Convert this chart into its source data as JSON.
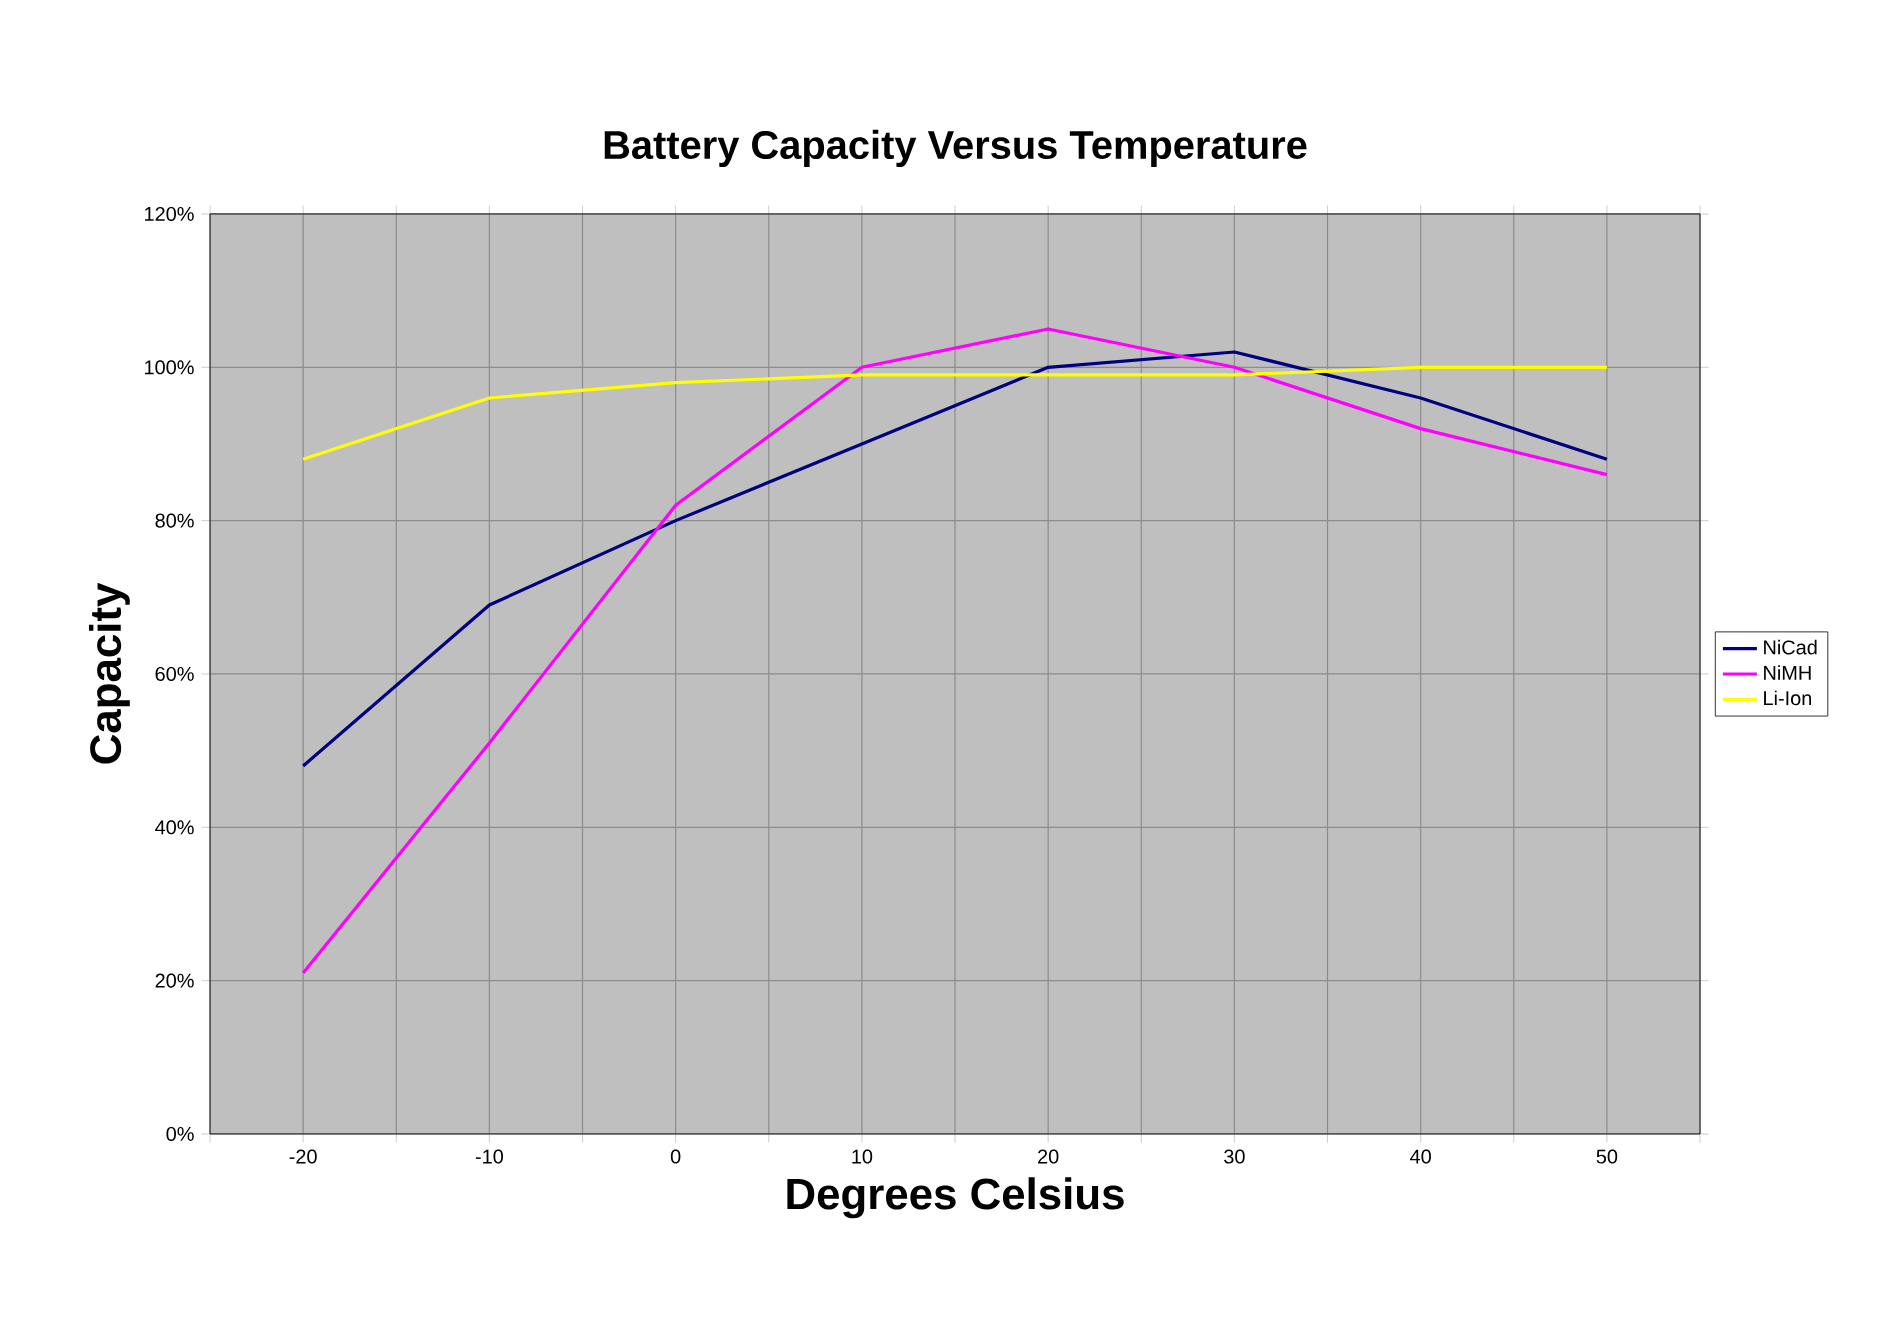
{
  "chart_data": {
    "type": "line",
    "title": "Battery Capacity Versus Temperature",
    "xlabel": "Degrees Celsius",
    "ylabel": "Capacity",
    "x": [
      -20,
      -10,
      0,
      10,
      20,
      30,
      40,
      50
    ],
    "series": [
      {
        "name": "NiCad",
        "color": "#000080",
        "values": [
          48,
          69,
          80,
          90,
          100,
          102,
          96,
          88
        ]
      },
      {
        "name": "NiMH",
        "color": "#ff00ff",
        "values": [
          21,
          51,
          82,
          100,
          105,
          100,
          92,
          86
        ]
      },
      {
        "name": "Li-Ion",
        "color": "#ffff00",
        "values": [
          88,
          96,
          98,
          99,
          99,
          99,
          100,
          100
        ]
      }
    ],
    "xlim": [
      -25,
      55
    ],
    "xticks": [
      {
        "value": -25,
        "label": null
      },
      -20,
      {
        "value": -15,
        "label": null
      },
      -10,
      {
        "value": -5,
        "label": null
      },
      0,
      {
        "value": 5,
        "label": null
      },
      10,
      {
        "value": 15,
        "label": null
      },
      20,
      {
        "value": 25,
        "label": null
      },
      30,
      {
        "value": 35,
        "label": null
      },
      40,
      {
        "value": 45,
        "label": null
      },
      50,
      {
        "value": 55,
        "label": null
      }
    ],
    "ylim": [
      0,
      120
    ],
    "yticks": [
      {
        "value": 0,
        "label": "0%"
      },
      {
        "value": 20,
        "label": "20%"
      },
      {
        "value": 40,
        "label": "40%"
      },
      {
        "value": 60,
        "label": "60%"
      },
      {
        "value": 80,
        "label": "80%"
      },
      {
        "value": 100,
        "label": "100%"
      },
      {
        "value": 120,
        "label": "120%"
      }
    ],
    "grid": true,
    "legend": "right",
    "marker": "none",
    "line_style": "solid"
  }
}
